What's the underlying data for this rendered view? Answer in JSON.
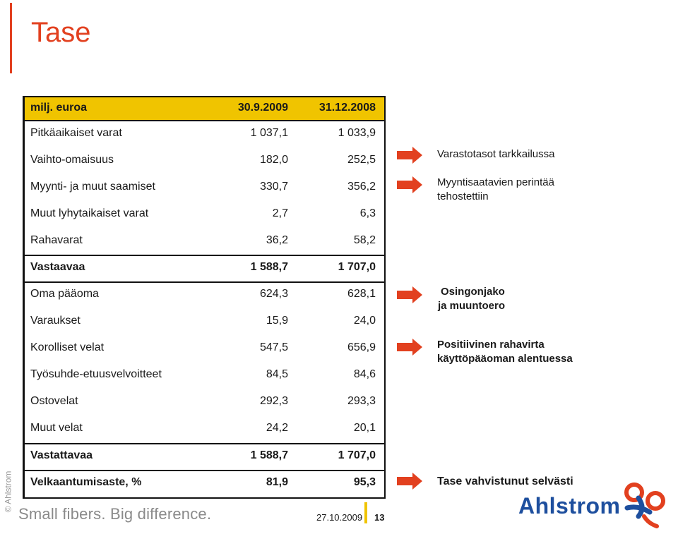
{
  "title": "Tase",
  "table": {
    "header": {
      "label": "milj. euroa",
      "col1": "30.9.2009",
      "col2": "31.12.2008"
    },
    "rows": [
      {
        "label": "Pitkäaikaiset varat",
        "col1": "1 037,1",
        "col2": "1 033,9",
        "bold": false
      },
      {
        "label": "Vaihto-omaisuus",
        "col1": "182,0",
        "col2": "252,5",
        "bold": false
      },
      {
        "label": "Myynti- ja muut saamiset",
        "col1": "330,7",
        "col2": "356,2",
        "bold": false
      },
      {
        "label": "Muut lyhytaikaiset varat",
        "col1": "2,7",
        "col2": "6,3",
        "bold": false
      },
      {
        "label": "Rahavarat",
        "col1": "36,2",
        "col2": "58,2",
        "bold": false
      },
      {
        "label": "Vastaavaa",
        "col1": "1 588,7",
        "col2": "1 707,0",
        "bold": true
      },
      {
        "label": "Oma pääoma",
        "col1": "624,3",
        "col2": "628,1",
        "bold": false
      },
      {
        "label": "Varaukset",
        "col1": "15,9",
        "col2": "24,0",
        "bold": false
      },
      {
        "label": "Korolliset velat",
        "col1": "547,5",
        "col2": "656,9",
        "bold": false
      },
      {
        "label": "Työsuhde-etuusvelvoitteet",
        "col1": "84,5",
        "col2": "84,6",
        "bold": false
      },
      {
        "label": "Ostovelat",
        "col1": "292,3",
        "col2": "293,3",
        "bold": false
      },
      {
        "label": "Muut velat",
        "col1": "24,2",
        "col2": "20,1",
        "bold": false
      },
      {
        "label": "Vastattavaa",
        "col1": "1 588,7",
        "col2": "1 707,0",
        "bold": true
      },
      {
        "label": "Velkaantumisaste, %",
        "col1": "81,9",
        "col2": "95,3",
        "bold": true
      }
    ]
  },
  "notes": {
    "n1": "Varastotasot tarkkailussa",
    "n2_line1": "Myyntisaatavien perintää",
    "n2_line2": "tehostettiin",
    "n3_line1": "Osingonjako",
    "n3_line2": "ja muuntoero",
    "n4_line1": "Positiivinen rahavirta",
    "n4_line2": "käyttöpääoman alentuessa",
    "n5": "Tase vahvistunut selvästi"
  },
  "footer": {
    "copyright": "© Ahlstrom",
    "tagline": "Small fibers. Big difference.",
    "date": "27.10.2009",
    "page": "13",
    "logo": "Ahlstrom"
  },
  "colors": {
    "accent": "#e2401f",
    "header_fill": "#f0c400",
    "logo_blue": "#1e4f9e"
  },
  "icons": [
    "arrow-right-icon",
    "ahlstrom-logo-mark-icon"
  ]
}
